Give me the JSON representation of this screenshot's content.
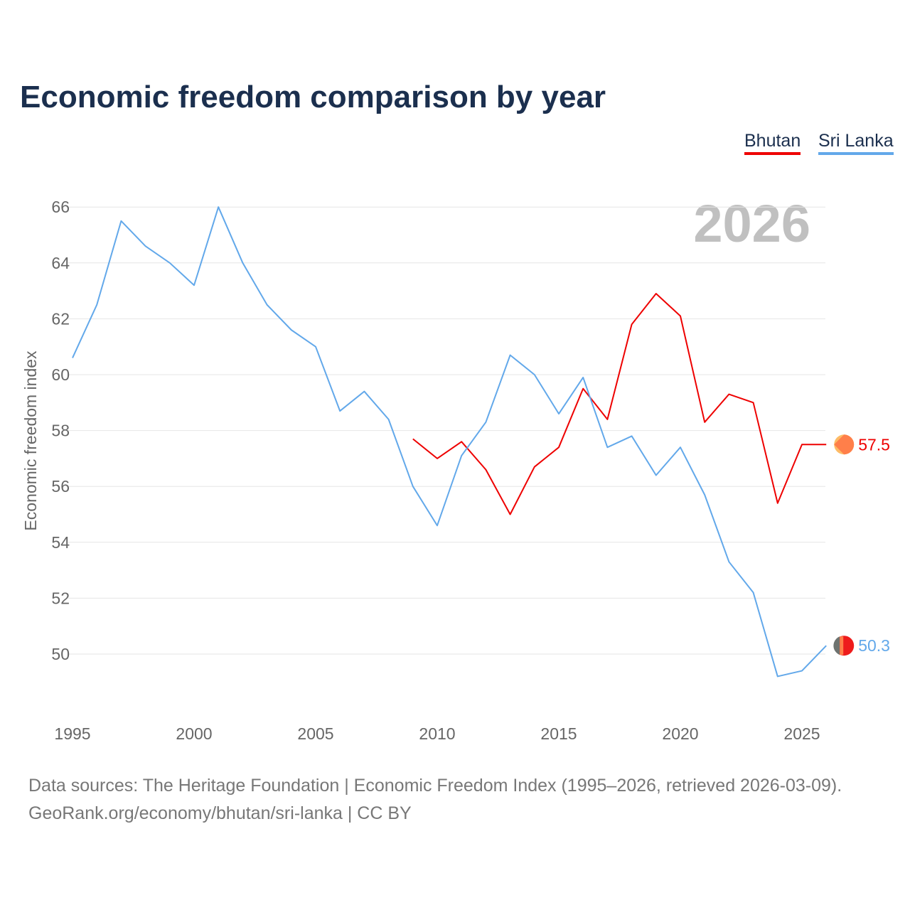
{
  "chart_data": {
    "type": "line",
    "title": "Economic freedom comparison by year",
    "ylabel": "Economic freedom index",
    "xlabel": "",
    "year_watermark": "2026",
    "ylim": [
      48,
      67
    ],
    "xlim": [
      1995,
      2026
    ],
    "yticks": [
      50,
      52,
      54,
      56,
      58,
      60,
      62,
      64,
      66
    ],
    "xticks": [
      1995,
      2000,
      2005,
      2010,
      2015,
      2020,
      2025
    ],
    "grid": true,
    "legend_position": "top-right",
    "series": [
      {
        "name": "Bhutan",
        "color": "#ee0000",
        "end_label": "57.5",
        "flag_icon": "bhutan-flag-icon",
        "x": [
          2009,
          2010,
          2011,
          2012,
          2013,
          2014,
          2015,
          2016,
          2017,
          2018,
          2019,
          2020,
          2021,
          2022,
          2023,
          2024,
          2025,
          2026
        ],
        "values": [
          57.7,
          57.0,
          57.6,
          56.6,
          55.0,
          56.7,
          57.4,
          59.5,
          58.4,
          61.8,
          62.9,
          62.1,
          58.3,
          59.3,
          59.0,
          55.4,
          57.5,
          57.5
        ]
      },
      {
        "name": "Sri Lanka",
        "color": "#62a8ea",
        "end_label": "50.3",
        "flag_icon": "sri-lanka-flag-icon",
        "x": [
          1995,
          1996,
          1997,
          1998,
          1999,
          2000,
          2001,
          2002,
          2003,
          2004,
          2005,
          2006,
          2007,
          2008,
          2009,
          2010,
          2011,
          2012,
          2013,
          2014,
          2015,
          2016,
          2017,
          2018,
          2019,
          2020,
          2021,
          2022,
          2023,
          2024,
          2025,
          2026
        ],
        "values": [
          60.6,
          62.5,
          65.5,
          64.6,
          64.0,
          63.2,
          66.0,
          64.0,
          62.5,
          61.6,
          61.0,
          58.7,
          59.4,
          58.4,
          56.0,
          54.6,
          57.1,
          58.3,
          60.7,
          60.0,
          58.6,
          59.9,
          57.4,
          57.8,
          56.4,
          57.4,
          55.7,
          53.3,
          52.2,
          49.2,
          49.4,
          50.3
        ]
      }
    ]
  },
  "footer": {
    "line1": "Data sources: The Heritage Foundation | Economic Freedom Index (1995–2026, retrieved 2026-03-09).",
    "line2": "GeoRank.org/economy/bhutan/sri-lanka | CC BY"
  }
}
